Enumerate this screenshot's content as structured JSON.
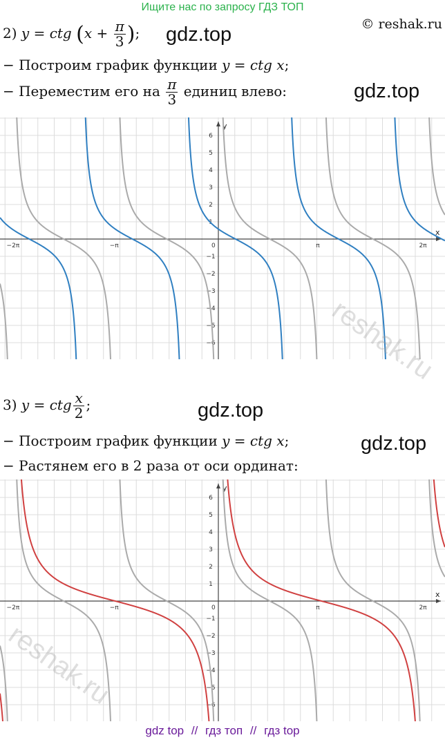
{
  "banner": "Ищите нас по запросу ГДЗ ТОП",
  "copyright": "© reshak.ru",
  "watermark": "gdz.top",
  "reshak_watermark": "reshak.ru",
  "part2": {
    "number": "2)",
    "y": "y",
    "eq": "=",
    "fn": "ctg",
    "x": "x",
    "plus": "+",
    "pi": "π",
    "three": "3",
    "semicolon": ";",
    "step1_prefix": "− Построим график функции ",
    "step1_formula": "y = ctg x",
    "step1_suffix": ";",
    "step2_prefix": "− Переместим его на ",
    "step2_num": "π",
    "step2_den": "3",
    "step2_suffix": " единиц влево:"
  },
  "part3": {
    "number": "3)",
    "y": "y",
    "eq": "=",
    "fn": "ctg",
    "x_num": "x",
    "x_den": "2",
    "semicolon": ";",
    "step1_prefix": "− Построим график функции ",
    "step1_formula": "y = ctg x",
    "step1_suffix": ";",
    "step2": "− Растянем его в 2 раза от оси ординат:"
  },
  "footer": {
    "a": "gdz top",
    "sep": "//",
    "b": "гдз топ",
    "c": "гдз top"
  },
  "graph1": {
    "x_ticks": [
      "−2π",
      "−π",
      "0",
      "π",
      "2π"
    ],
    "y_ticks": [
      "6",
      "5",
      "4",
      "3",
      "2",
      "1",
      "−1",
      "−2",
      "−3",
      "−4",
      "−5",
      "−6"
    ],
    "x_label": "x",
    "y_label": "y",
    "base_color": "#aaaaaa",
    "transformed_color": "#2f7fc1"
  },
  "graph2": {
    "x_ticks": [
      "−2π",
      "−π",
      "0",
      "π",
      "2π"
    ],
    "y_ticks": [
      "6",
      "5",
      "4",
      "3",
      "2",
      "1",
      "−1",
      "−2",
      "−3",
      "−4",
      "−5",
      "−6"
    ],
    "x_label": "x",
    "y_label": "y",
    "base_color": "#aaaaaa",
    "transformed_color": "#d04040"
  }
}
